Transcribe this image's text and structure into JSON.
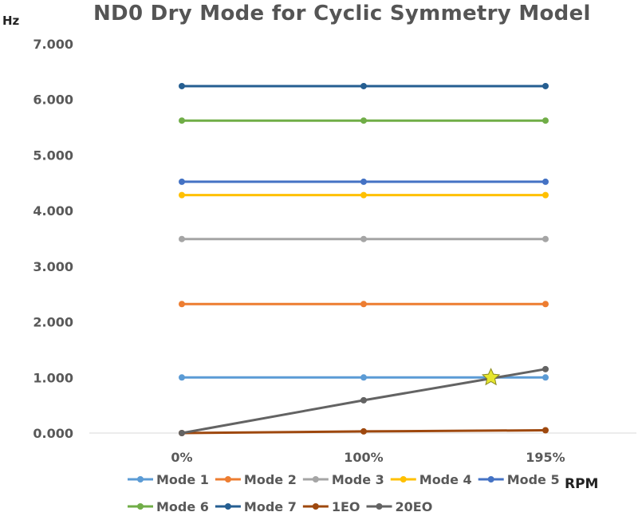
{
  "chart_data": {
    "type": "line",
    "title": "ND0 Dry Mode for Cyclic Symmetry Model",
    "ylabel": "Hz",
    "xlabel": "RPM",
    "categories": [
      "0%",
      "100%",
      "195%"
    ],
    "ylim": [
      0,
      7
    ],
    "y_ticks": [
      "0.000",
      "1.000",
      "2.000",
      "3.000",
      "4.000",
      "5.000",
      "6.000",
      "7.000"
    ],
    "y_tick_values": [
      0,
      1,
      2,
      3,
      4,
      5,
      6,
      7
    ],
    "grid": false,
    "legend": "bottom",
    "series": [
      {
        "name": "Mode 1",
        "color": "#5b9bd5",
        "values": [
          1.0,
          1.0,
          1.0
        ]
      },
      {
        "name": "Mode 2",
        "color": "#ed7d31",
        "values": [
          2.32,
          2.32,
          2.32
        ]
      },
      {
        "name": "Mode 3",
        "color": "#a5a5a5",
        "values": [
          3.49,
          3.49,
          3.49
        ]
      },
      {
        "name": "Mode 4",
        "color": "#ffc000",
        "values": [
          4.28,
          4.28,
          4.28
        ]
      },
      {
        "name": "Mode 5",
        "color": "#4472c4",
        "values": [
          4.52,
          4.52,
          4.52
        ]
      },
      {
        "name": "Mode 6",
        "color": "#70ad47",
        "values": [
          5.62,
          5.62,
          5.62
        ]
      },
      {
        "name": "Mode 7",
        "color": "#255e91",
        "values": [
          6.24,
          6.24,
          6.24
        ]
      },
      {
        "name": "1EO",
        "color": "#9e480e",
        "values": [
          0.0,
          0.03,
          0.05
        ]
      },
      {
        "name": "20EO",
        "color": "#636363",
        "values": [
          0.0,
          0.59,
          1.15
        ]
      }
    ],
    "annotations": [
      {
        "type": "star-marker",
        "color": "#e6e62e",
        "x": 1.7,
        "y": 1.0
      }
    ]
  }
}
